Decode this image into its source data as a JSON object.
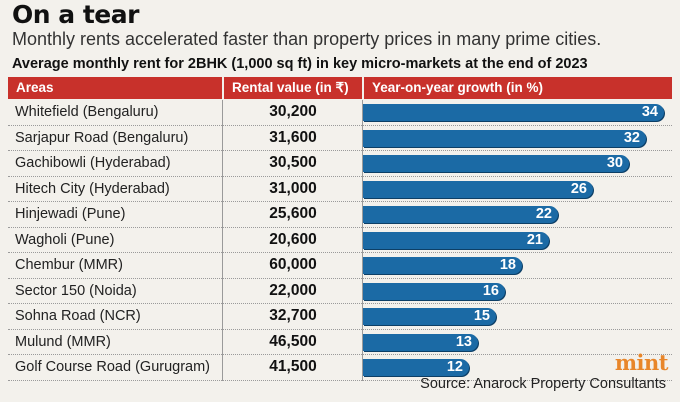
{
  "title": "On a tear",
  "subtitle": "Monthly rents accelerated faster than property prices in many prime cities.",
  "chart_heading": "Average monthly rent for 2BHK (1,000 sq ft) in key micro-markets at the end of 2023",
  "headers": {
    "areas": "Areas",
    "rent": "Rental value (in ₹)",
    "growth": "Year-on-year growth (in %)"
  },
  "chart_data": {
    "type": "bar",
    "orientation": "horizontal",
    "title": "Average monthly rent for 2BHK (1,000 sq ft) in key micro-markets at the end of 2023",
    "categories": [
      "Whitefield (Bengaluru)",
      "Sarjapur Road (Bengaluru)",
      "Gachibowli (Hyderabad)",
      "Hitech City (Hyderabad)",
      "Hinjewadi (Pune)",
      "Wagholi (Pune)",
      "Chembur (MMR)",
      "Sector 150 (Noida)",
      "Sohna Road (NCR)",
      "Mulund (MMR)",
      "Golf Course Road (Gurugram)"
    ],
    "rental_values": [
      "30,200",
      "31,600",
      "30,500",
      "31,000",
      "25,600",
      "20,600",
      "60,000",
      "22,000",
      "32,700",
      "46,500",
      "41,500"
    ],
    "values": [
      34,
      32,
      30,
      26,
      22,
      21,
      18,
      16,
      15,
      13,
      12
    ],
    "xlim": [
      0,
      34
    ],
    "data_labels": true,
    "grid": false,
    "bar_color": "#1b6aa5",
    "header_color": "#c8312b"
  },
  "brand": "mint",
  "source": "Source: Anarock Property Consultants"
}
